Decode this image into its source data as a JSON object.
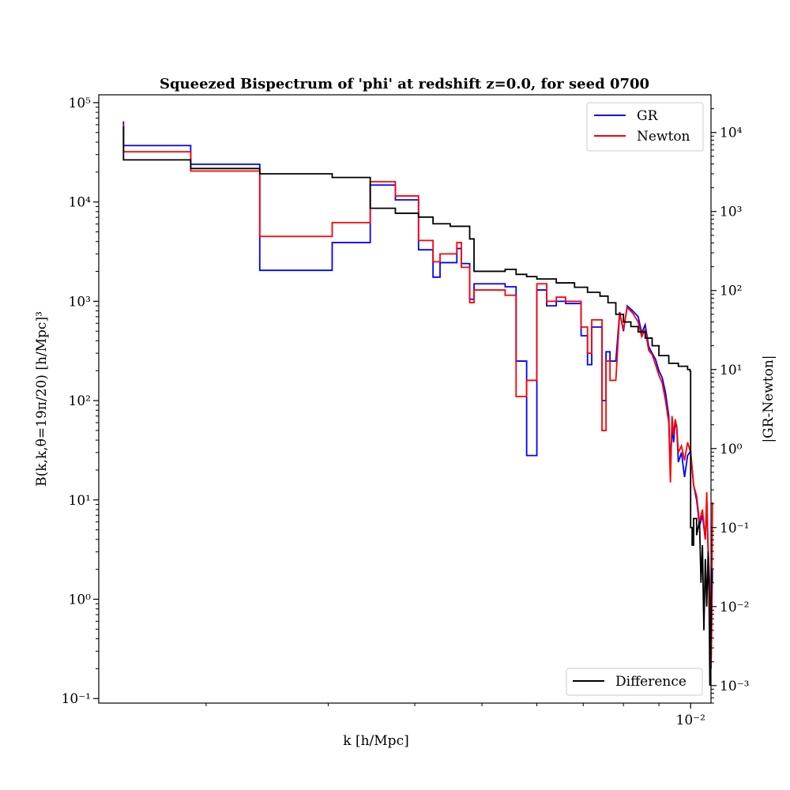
{
  "chart_data": {
    "type": "line",
    "title": "Squeezed Bispectrum of 'phi' at redshift z=0.0, for seed 0700",
    "xlabel": "k [h/Mpc]",
    "ylabel_left": "B(k,k,θ=19π/20) [h/Mpc]³",
    "ylabel_right": "|GR-Newton|",
    "x_scale": "log",
    "x_ticks": [
      {
        "value": 0.01,
        "label": "10⁻²"
      }
    ],
    "x_range": [
      0.0014,
      0.0107
    ],
    "y_left_scale": "log",
    "y_left_range": [
      0.09,
      120000
    ],
    "y_left_ticks": [
      {
        "value": 0.1,
        "label": "10⁻¹"
      },
      {
        "value": 1,
        "label": "10⁰"
      },
      {
        "value": 10,
        "label": "10¹"
      },
      {
        "value": 100,
        "label": "10²"
      },
      {
        "value": 1000,
        "label": "10³"
      },
      {
        "value": 10000,
        "label": "10⁴"
      },
      {
        "value": 100000,
        "label": "10⁵"
      }
    ],
    "y_right_scale": "log",
    "y_right_range": [
      0.0006,
      30000
    ],
    "y_right_ticks": [
      {
        "value": 0.001,
        "label": "10⁻³"
      },
      {
        "value": 0.01,
        "label": "10⁻²"
      },
      {
        "value": 0.1,
        "label": "10⁻¹"
      },
      {
        "value": 1,
        "label": "10⁰"
      },
      {
        "value": 10,
        "label": "10¹"
      },
      {
        "value": 100,
        "label": "10²"
      },
      {
        "value": 1000,
        "label": "10³"
      },
      {
        "value": 10000,
        "label": "10⁴"
      }
    ],
    "legend_upper": {
      "placement": "top-right",
      "entries": [
        "GR",
        "Newton"
      ]
    },
    "legend_lower": {
      "placement": "bottom-right",
      "entries": [
        "Difference"
      ]
    },
    "series": [
      {
        "name": "GR",
        "axis": "left",
        "color": "#0000ff",
        "points": [
          [
            0.00152,
            65000
          ],
          [
            0.00152,
            37000
          ],
          [
            0.0019,
            37000
          ],
          [
            0.0019,
            24000
          ],
          [
            0.00239,
            24000
          ],
          [
            0.00239,
            2050
          ],
          [
            0.00304,
            2050
          ],
          [
            0.00304,
            3900
          ],
          [
            0.00345,
            3900
          ],
          [
            0.00345,
            14800
          ],
          [
            0.00375,
            14800
          ],
          [
            0.00375,
            10500
          ],
          [
            0.00405,
            10500
          ],
          [
            0.00405,
            3300
          ],
          [
            0.00425,
            3300
          ],
          [
            0.00425,
            1750
          ],
          [
            0.00435,
            1750
          ],
          [
            0.00435,
            2450
          ],
          [
            0.0046,
            2450
          ],
          [
            0.0046,
            3400
          ],
          [
            0.00467,
            3400
          ],
          [
            0.00467,
            2400
          ],
          [
            0.0048,
            2400
          ],
          [
            0.0048,
            1050
          ],
          [
            0.00487,
            1050
          ],
          [
            0.00487,
            1500
          ],
          [
            0.0054,
            1500
          ],
          [
            0.0054,
            1400
          ],
          [
            0.0056,
            1400
          ],
          [
            0.0056,
            250
          ],
          [
            0.0058,
            250
          ],
          [
            0.0058,
            28
          ],
          [
            0.006,
            28
          ],
          [
            0.006,
            1300
          ],
          [
            0.0062,
            1300
          ],
          [
            0.0062,
            900
          ],
          [
            0.0064,
            900
          ],
          [
            0.0064,
            1000
          ],
          [
            0.0066,
            1000
          ],
          [
            0.0066,
            950
          ],
          [
            0.00695,
            950
          ],
          [
            0.00695,
            450
          ],
          [
            0.0071,
            450
          ],
          [
            0.0071,
            230
          ],
          [
            0.0072,
            230
          ],
          [
            0.0072,
            550
          ],
          [
            0.00745,
            550
          ],
          [
            0.00745,
            100
          ],
          [
            0.00755,
            100
          ],
          [
            0.00755,
            310
          ],
          [
            0.00765,
            310
          ],
          [
            0.00765,
            250
          ],
          [
            0.0078,
            250
          ],
          [
            0.0079,
            780
          ],
          [
            0.008,
            500
          ],
          [
            0.0081,
            900
          ],
          [
            0.00825,
            800
          ],
          [
            0.0084,
            700
          ],
          [
            0.0085,
            480
          ],
          [
            0.0086,
            580
          ],
          [
            0.0087,
            350
          ],
          [
            0.0088,
            300
          ],
          [
            0.0089,
            260
          ],
          [
            0.009,
            200
          ],
          [
            0.0091,
            170
          ],
          [
            0.0092,
            120
          ],
          [
            0.0093,
            70
          ],
          [
            0.00935,
            20
          ],
          [
            0.0094,
            55
          ],
          [
            0.00945,
            38
          ],
          [
            0.0095,
            60
          ],
          [
            0.00955,
            53
          ],
          [
            0.0096,
            24
          ],
          [
            0.0097,
            30
          ],
          [
            0.0098,
            17
          ],
          [
            0.0099,
            28
          ],
          [
            0.01,
            31
          ],
          [
            0.0101,
            14
          ],
          [
            0.0102,
            10
          ],
          [
            0.0103,
            5.5
          ],
          [
            0.0104,
            7
          ],
          [
            0.0105,
            4
          ],
          [
            0.01055,
            10
          ],
          [
            0.0106,
            3
          ],
          [
            0.01065,
            1.5
          ],
          [
            0.0107,
            0.2
          ],
          [
            0.01072,
            0.5
          ],
          [
            0.01075,
            2
          ]
        ]
      },
      {
        "name": "Newton",
        "axis": "left",
        "color": "#ff0000",
        "points": [
          [
            0.00152,
            60000
          ],
          [
            0.00152,
            32000
          ],
          [
            0.0019,
            32000
          ],
          [
            0.0019,
            20500
          ],
          [
            0.00239,
            20500
          ],
          [
            0.00239,
            4500
          ],
          [
            0.00304,
            4500
          ],
          [
            0.00304,
            6200
          ],
          [
            0.00345,
            6200
          ],
          [
            0.00345,
            16000
          ],
          [
            0.00375,
            16000
          ],
          [
            0.00375,
            11500
          ],
          [
            0.00405,
            11500
          ],
          [
            0.00405,
            4100
          ],
          [
            0.00425,
            4100
          ],
          [
            0.00425,
            2500
          ],
          [
            0.00435,
            2500
          ],
          [
            0.00435,
            3000
          ],
          [
            0.0046,
            3000
          ],
          [
            0.0046,
            3900
          ],
          [
            0.00467,
            3900
          ],
          [
            0.00467,
            2200
          ],
          [
            0.0048,
            2200
          ],
          [
            0.0048,
            970
          ],
          [
            0.00487,
            970
          ],
          [
            0.00487,
            1300
          ],
          [
            0.0054,
            1300
          ],
          [
            0.0054,
            1150
          ],
          [
            0.0056,
            1150
          ],
          [
            0.0056,
            110
          ],
          [
            0.0058,
            110
          ],
          [
            0.0058,
            160
          ],
          [
            0.006,
            160
          ],
          [
            0.006,
            1500
          ],
          [
            0.0062,
            1500
          ],
          [
            0.0062,
            1000
          ],
          [
            0.0064,
            1000
          ],
          [
            0.0064,
            1100
          ],
          [
            0.0066,
            1100
          ],
          [
            0.0066,
            1000
          ],
          [
            0.00695,
            1000
          ],
          [
            0.00695,
            550
          ],
          [
            0.0071,
            550
          ],
          [
            0.0071,
            300
          ],
          [
            0.0072,
            300
          ],
          [
            0.0072,
            650
          ],
          [
            0.00745,
            650
          ],
          [
            0.00745,
            50
          ],
          [
            0.00755,
            50
          ],
          [
            0.00755,
            250
          ],
          [
            0.00765,
            250
          ],
          [
            0.00765,
            160
          ],
          [
            0.0078,
            160
          ],
          [
            0.0079,
            760
          ],
          [
            0.008,
            520
          ],
          [
            0.0081,
            870
          ],
          [
            0.00825,
            760
          ],
          [
            0.0084,
            620
          ],
          [
            0.0085,
            440
          ],
          [
            0.0086,
            520
          ],
          [
            0.0087,
            320
          ],
          [
            0.0088,
            290
          ],
          [
            0.0089,
            230
          ],
          [
            0.009,
            180
          ],
          [
            0.0091,
            150
          ],
          [
            0.0092,
            100
          ],
          [
            0.0093,
            60
          ],
          [
            0.00935,
            15
          ],
          [
            0.0094,
            70
          ],
          [
            0.00945,
            45
          ],
          [
            0.0095,
            65
          ],
          [
            0.00955,
            55
          ],
          [
            0.0096,
            30
          ],
          [
            0.0097,
            35
          ],
          [
            0.0098,
            25
          ],
          [
            0.0099,
            38
          ],
          [
            0.01,
            30
          ],
          [
            0.0101,
            14
          ],
          [
            0.0102,
            11
          ],
          [
            0.0103,
            6
          ],
          [
            0.0104,
            8
          ],
          [
            0.0105,
            4
          ],
          [
            0.01055,
            12
          ],
          [
            0.0106,
            3
          ],
          [
            0.01065,
            1.3
          ],
          [
            0.0107,
            0.2
          ],
          [
            0.01072,
            0.4
          ],
          [
            0.01075,
            9.5
          ]
        ]
      },
      {
        "name": "Difference",
        "axis": "right",
        "color": "#000000",
        "points": [
          [
            0.00152,
            12000
          ],
          [
            0.00152,
            4500
          ],
          [
            0.0019,
            4500
          ],
          [
            0.0019,
            3500
          ],
          [
            0.00239,
            3500
          ],
          [
            0.00239,
            3000
          ],
          [
            0.00304,
            3000
          ],
          [
            0.00304,
            2700
          ],
          [
            0.00345,
            2700
          ],
          [
            0.00345,
            1100
          ],
          [
            0.00375,
            1100
          ],
          [
            0.00375,
            950
          ],
          [
            0.00405,
            950
          ],
          [
            0.00405,
            850
          ],
          [
            0.00425,
            850
          ],
          [
            0.00425,
            700
          ],
          [
            0.0045,
            700
          ],
          [
            0.0045,
            650
          ],
          [
            0.0048,
            650
          ],
          [
            0.0048,
            450
          ],
          [
            0.00487,
            450
          ],
          [
            0.00487,
            175
          ],
          [
            0.0054,
            175
          ],
          [
            0.0054,
            185
          ],
          [
            0.0056,
            185
          ],
          [
            0.0056,
            160
          ],
          [
            0.0058,
            160
          ],
          [
            0.0058,
            150
          ],
          [
            0.006,
            150
          ],
          [
            0.006,
            140
          ],
          [
            0.0064,
            140
          ],
          [
            0.0064,
            125
          ],
          [
            0.0068,
            125
          ],
          [
            0.0068,
            110
          ],
          [
            0.0071,
            110
          ],
          [
            0.0071,
            95
          ],
          [
            0.0074,
            95
          ],
          [
            0.0074,
            85
          ],
          [
            0.0076,
            85
          ],
          [
            0.0076,
            70
          ],
          [
            0.0078,
            70
          ],
          [
            0.0078,
            50
          ],
          [
            0.008,
            50
          ],
          [
            0.008,
            40
          ],
          [
            0.0082,
            40
          ],
          [
            0.0082,
            35
          ],
          [
            0.0084,
            35
          ],
          [
            0.0084,
            30
          ],
          [
            0.0086,
            30
          ],
          [
            0.0086,
            25
          ],
          [
            0.0088,
            25
          ],
          [
            0.0088,
            20
          ],
          [
            0.009,
            20
          ],
          [
            0.009,
            15
          ],
          [
            0.0093,
            15
          ],
          [
            0.0093,
            12
          ],
          [
            0.0096,
            12
          ],
          [
            0.0096,
            11
          ],
          [
            0.0099,
            11
          ],
          [
            0.0099,
            10
          ],
          [
            0.00998,
            10
          ],
          [
            0.00998,
            9.5
          ],
          [
            0.01,
            9.5
          ],
          [
            0.01,
            0.1
          ],
          [
            0.01005,
            0.1
          ],
          [
            0.01005,
            0.06
          ],
          [
            0.0101,
            0.06
          ],
          [
            0.0101,
            0.13
          ],
          [
            0.0102,
            0.13
          ],
          [
            0.0102,
            0.08
          ],
          [
            0.0103,
            0.12
          ],
          [
            0.01035,
            0.02
          ],
          [
            0.0104,
            0.06
          ],
          [
            0.01045,
            0.005
          ],
          [
            0.0105,
            0.04
          ],
          [
            0.01055,
            0.01
          ],
          [
            0.0106,
            0.05
          ],
          [
            0.01063,
            0.015
          ],
          [
            0.01066,
            0.001
          ],
          [
            0.01069,
            0.003
          ],
          [
            0.01072,
            0.03
          ],
          [
            0.01075,
            0.02
          ]
        ]
      }
    ]
  }
}
